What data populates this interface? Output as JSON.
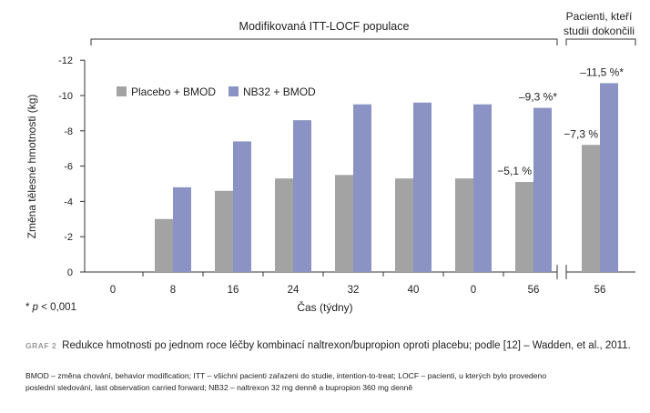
{
  "header_left": "Modifikovaná ITT-LOCF populace",
  "header_right_line1": "Pacienti, kteří",
  "header_right_line2": "studii dokončili",
  "footnote_symbol": "* ",
  "footnote_p": "p",
  "footnote_rest": " < 0,001",
  "caption_label": "GRAF 2",
  "caption_text": "Redukce hmotnosti po jednom roce léčby kombinací naltrexon/bupropion oproti placebu; podle [12] – Wadden, et al., 2011.",
  "notes_line1": "BMOD – změna chování, behavior modification; ITT – všichni pacienti zařazeni do studie, intention-to-treat; LOCF – pacienti, u kterých bylo provedeno",
  "notes_line2": "poslední sledování, last observation carried forward; NB32 – naltrexon 32 mg denně a bupropion 360 mg denně",
  "colors": {
    "placebo": "#a3a3a3",
    "nb32": "#8a93c4",
    "axis": "#333333"
  },
  "chart_data": {
    "type": "bar",
    "ylabel": "Změna tělesné hmotnosti (kg)",
    "xlabel": "Čas (týdny)",
    "yticks": [
      "-12",
      "-10",
      "-8",
      "-6",
      "-4",
      "-2",
      "0"
    ],
    "ylim": [
      0,
      -12
    ],
    "legend_position": "top-left",
    "categories": [
      "0",
      "8",
      "16",
      "24",
      "32",
      "40",
      "0",
      "56",
      "56"
    ],
    "series": [
      {
        "name": "Placebo + BMOD",
        "values": [
          0,
          -3.0,
          -4.6,
          -5.3,
          -5.5,
          -5.3,
          -5.3,
          -5.1,
          -7.2
        ]
      },
      {
        "name": "NB32 + BMOD",
        "values": [
          0,
          -4.8,
          -7.4,
          -8.6,
          -9.5,
          -9.6,
          -9.5,
          -9.3,
          -10.7
        ]
      }
    ],
    "annotations": [
      {
        "category_index": 7,
        "series": 0,
        "text": "−5,1 %"
      },
      {
        "category_index": 7,
        "series": 1,
        "text": "–9,3 %*"
      },
      {
        "category_index": 8,
        "series": 0,
        "text": "−7,3 %"
      },
      {
        "category_index": 8,
        "series": 1,
        "text": "–11,5 %*"
      }
    ]
  }
}
